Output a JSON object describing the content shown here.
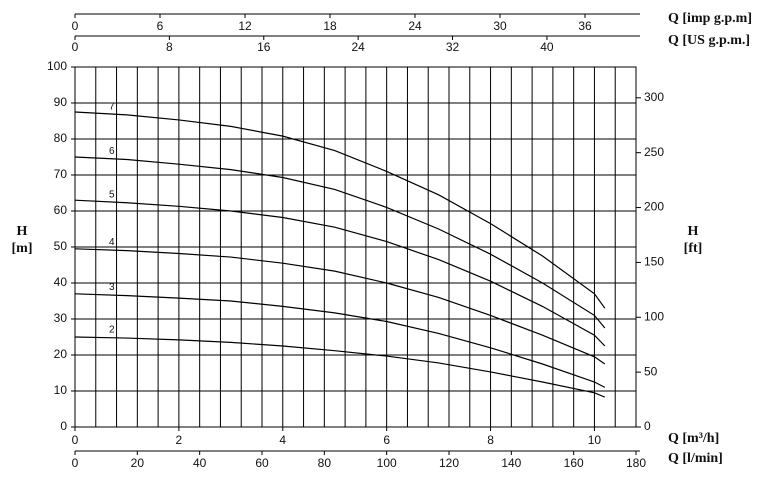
{
  "chart_data": {
    "type": "line",
    "x": [
      0,
      1,
      2,
      3,
      4,
      5,
      6,
      7,
      8,
      9,
      10,
      10.2
    ],
    "series": [
      {
        "name": "2",
        "color": "#000000",
        "values": [
          25,
          24.7,
          24.2,
          23.5,
          22.5,
          21.2,
          19.7,
          17.8,
          15.3,
          12.5,
          9.5,
          8.3
        ]
      },
      {
        "name": "3",
        "color": "#000000",
        "values": [
          37,
          36.5,
          35.8,
          35,
          33.5,
          31.7,
          29.3,
          26,
          22,
          17.5,
          12.5,
          11
        ]
      },
      {
        "name": "4",
        "color": "#000000",
        "values": [
          49.5,
          49,
          48.2,
          47.2,
          45.5,
          43.3,
          40,
          36,
          31,
          25.5,
          19.5,
          17.5
        ]
      },
      {
        "name": "5",
        "color": "#000000",
        "values": [
          63,
          62.3,
          61.3,
          60,
          58.2,
          55.5,
          51.5,
          46.5,
          40.5,
          33.5,
          25.5,
          22.5
        ]
      },
      {
        "name": "6",
        "color": "#000000",
        "values": [
          75,
          74.3,
          73,
          71.5,
          69.3,
          66,
          61,
          55,
          48,
          40,
          31,
          27.5
        ]
      },
      {
        "name": "7",
        "color": "#000000",
        "values": [
          87.5,
          86.7,
          85.3,
          83.5,
          80.8,
          76.8,
          71,
          64.5,
          56.5,
          47.5,
          37,
          33
        ]
      }
    ],
    "xlim": [
      0,
      10.8
    ],
    "xticks": [
      0,
      2,
      4,
      6,
      8,
      10
    ],
    "xlabel": "Q [m³/h]",
    "x2lim": [
      0,
      180
    ],
    "x2ticks": [
      0,
      20,
      40,
      60,
      80,
      100,
      120,
      140,
      160,
      180
    ],
    "x2label": "Q [l/min]",
    "x3lim": [
      0,
      39.6
    ],
    "x3ticks": [
      0,
      6,
      12,
      18,
      24,
      30,
      36
    ],
    "x3label": "Q [imp g.p.m]",
    "x4lim": [
      0,
      47.55
    ],
    "x4ticks": [
      0,
      8,
      16,
      24,
      32,
      40
    ],
    "x4label": "Q [US g.p.m.]",
    "xgrid": [
      0.4,
      0.8,
      1.2,
      1.6,
      2,
      2.4,
      2.8,
      3.2,
      3.6,
      4,
      4.4,
      4.8,
      5.2,
      5.6,
      6,
      6.4,
      6.8,
      7.2,
      7.6,
      8,
      8.4,
      8.8,
      9.2,
      9.6,
      10,
      10.4
    ],
    "ylim": [
      0,
      100
    ],
    "yticks": [
      0,
      10,
      20,
      30,
      40,
      50,
      60,
      70,
      80,
      90,
      100
    ],
    "ylabel": "H",
    "yunit": "[m]",
    "y2lim": [
      0,
      328.08
    ],
    "y2ticks": [
      0,
      50,
      100,
      150,
      200,
      250,
      300
    ],
    "y2label": "H",
    "y2unit": "[ft]",
    "grid": true
  }
}
